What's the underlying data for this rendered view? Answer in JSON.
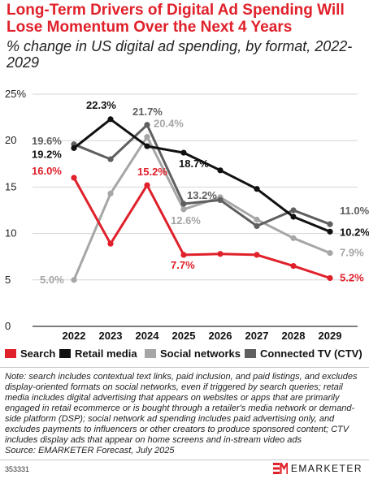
{
  "header": {
    "title": "Long-Term Drivers of Digital Ad Spending Will Lose Momentum Over the Next 4 Years",
    "subtitle": "% change in US digital ad spending, by format, 2022-2029"
  },
  "chart_data": {
    "type": "line",
    "title": "Long-Term Drivers of Digital Ad Spending Will Lose Momentum Over the Next 4 Years",
    "subtitle": "% change in US digital ad spending, by format, 2022-2029",
    "x": [
      "2022",
      "2023",
      "2024",
      "2025",
      "2026",
      "2027",
      "2028",
      "2029"
    ],
    "ylim": [
      0,
      25
    ],
    "yticks": [
      "0",
      "5",
      "10",
      "15",
      "20",
      "25%"
    ],
    "grid": true,
    "legend_position": "bottom",
    "series": [
      {
        "name": "Search",
        "color": "#e0202a",
        "values": [
          16.0,
          8.9,
          15.2,
          7.7,
          7.8,
          7.7,
          6.5,
          5.2
        ]
      },
      {
        "name": "Retail media",
        "color": "#111111",
        "values": [
          19.2,
          22.3,
          19.4,
          18.7,
          16.8,
          14.8,
          11.8,
          10.2
        ]
      },
      {
        "name": "Social networks",
        "color": "#a6a6a6",
        "values": [
          5.0,
          14.3,
          20.4,
          12.6,
          13.9,
          11.5,
          9.5,
          7.9
        ]
      },
      {
        "name": "Connected TV (CTV)",
        "color": "#5f5f5f",
        "values": [
          19.6,
          18.0,
          21.7,
          13.2,
          13.6,
          10.8,
          12.5,
          11.0
        ]
      }
    ],
    "annotations": [
      {
        "series": 0,
        "index": 0,
        "text": "16.0%"
      },
      {
        "series": 0,
        "index": 2,
        "text": "15.2%"
      },
      {
        "series": 0,
        "index": 3,
        "text": "7.7%"
      },
      {
        "series": 0,
        "index": 7,
        "text": "5.2%"
      },
      {
        "series": 1,
        "index": 0,
        "text": "19.2%"
      },
      {
        "series": 1,
        "index": 1,
        "text": "22.3%"
      },
      {
        "series": 1,
        "index": 3,
        "text": "18.7%"
      },
      {
        "series": 1,
        "index": 7,
        "text": "10.2%"
      },
      {
        "series": 2,
        "index": 0,
        "text": "5.0%"
      },
      {
        "series": 2,
        "index": 2,
        "text": "20.4%"
      },
      {
        "series": 2,
        "index": 3,
        "text": "12.6%"
      },
      {
        "series": 2,
        "index": 7,
        "text": "7.9%"
      },
      {
        "series": 3,
        "index": 0,
        "text": "19.6%"
      },
      {
        "series": 3,
        "index": 2,
        "text": "21.7%"
      },
      {
        "series": 3,
        "index": 3,
        "text": "13.2%"
      },
      {
        "series": 3,
        "index": 7,
        "text": "11.0%"
      }
    ]
  },
  "legend": {
    "items": [
      "Search",
      "Retail media",
      "Social networks",
      "Connected TV (CTV)"
    ]
  },
  "note": "Note: search includes contextual text links, paid inclusion, and paid listings, and excludes display-oriented formats on social networks, even if triggered by search queries; retail media includes digital advertising that appears on websites or apps that are primarily engaged in retail ecommerce or is bought through a retailer's media network or demand-side platform (DSP); social network ad spending includes paid advertising only, and excludes payments to influencers or other creators to produce sponsored content; CTV includes display ads that appear on home screens and in-stream video ads",
  "source": "Source: EMARKETER Forecast, July 2025",
  "footer": {
    "chart_id": "353331",
    "brand": "EMARKETER"
  }
}
